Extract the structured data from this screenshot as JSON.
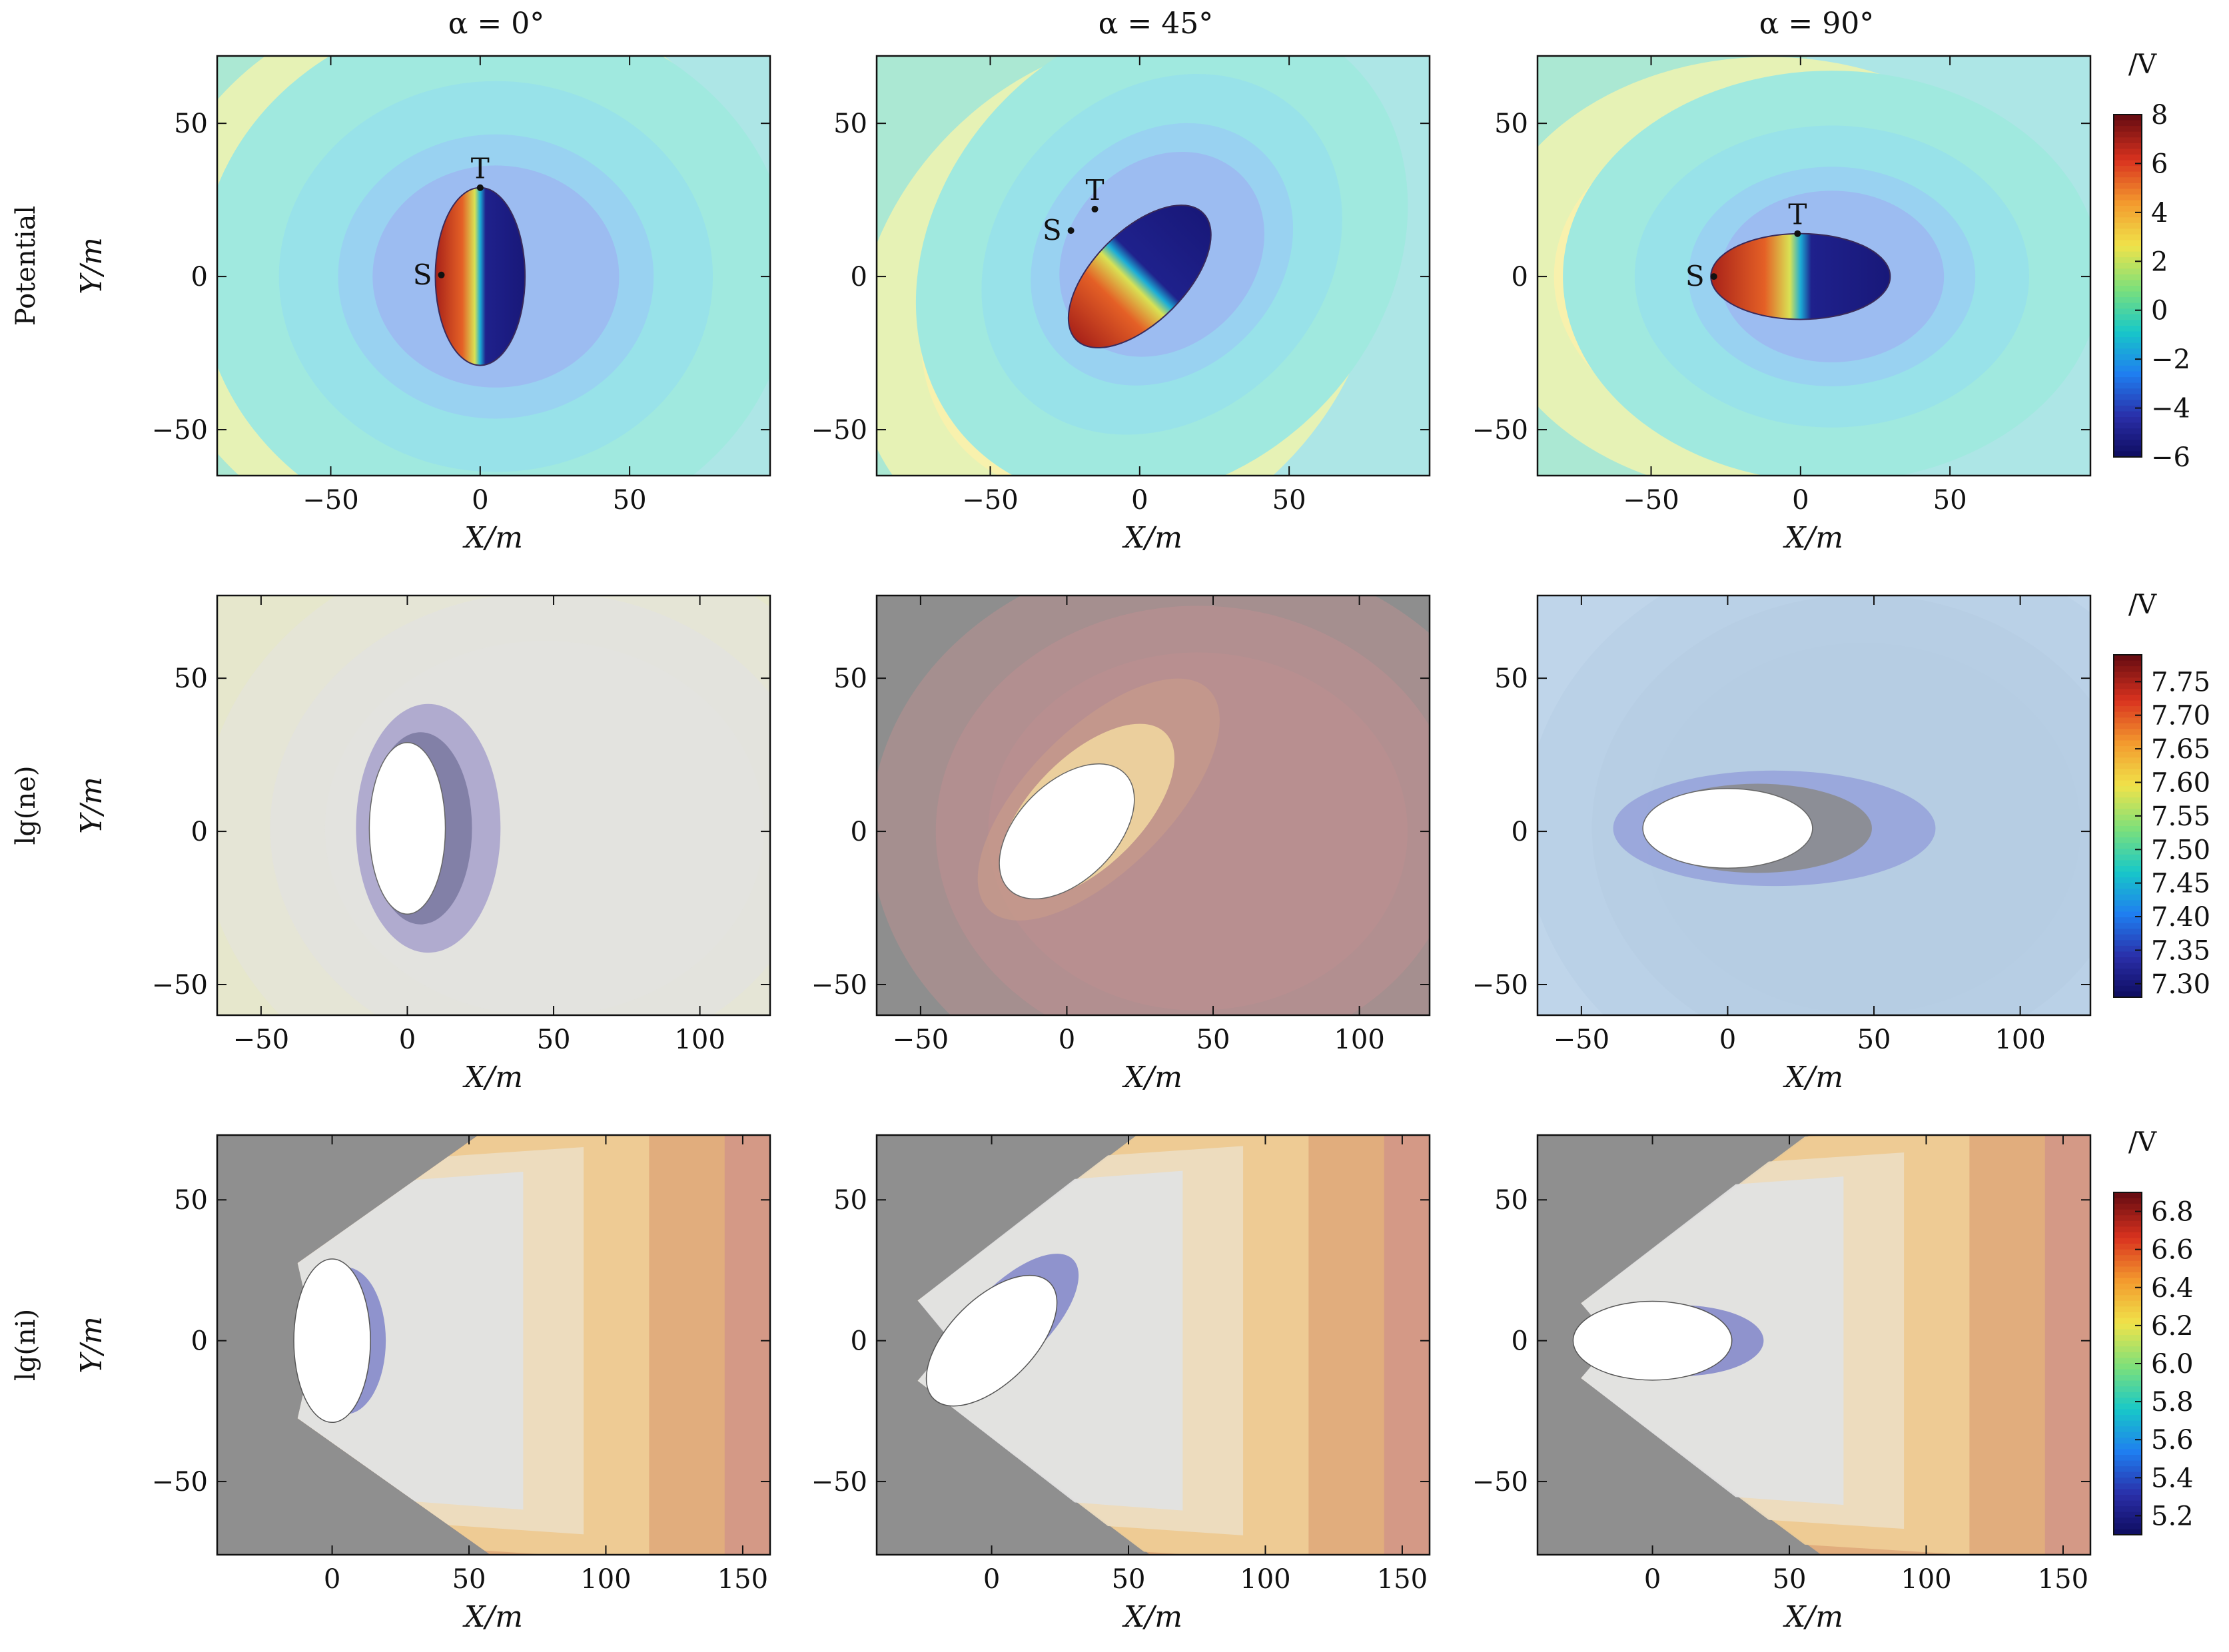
{
  "column_titles": [
    "α = 0°",
    "α = 45°",
    "α = 90°"
  ],
  "row_labels": [
    "Potential",
    "lg(ne)",
    "lg(ni)"
  ],
  "axis_units": {
    "x": "X/m",
    "y": "Y/m"
  },
  "colorbar_unit": "/V",
  "point_labels": {
    "S": "S",
    "T": "T"
  },
  "colormap": [
    "#0c0a5a",
    "#2a2ea8",
    "#1f7ef0",
    "#18c8c8",
    "#7ee07a",
    "#f0e34a",
    "#f39a2e",
    "#d9321f",
    "#6a0d12"
  ],
  "chart_data": [
    {
      "type": "heatmap",
      "row": "Potential",
      "column": "α = 0°",
      "xlim": [
        -88,
        97
      ],
      "ylim": [
        -65,
        72
      ],
      "xticks": [
        -50,
        0,
        50
      ],
      "yticks": [
        -50,
        0,
        50
      ],
      "xlabel": "X/m",
      "ylabel": "Y/m",
      "ellipse": {
        "cx": 0,
        "cy": 0,
        "rx": 15,
        "ry": 29,
        "angle_deg": 0,
        "mode": "potential"
      },
      "points": [
        {
          "label": "S",
          "x": -13,
          "y": 0.5
        },
        {
          "label": "T",
          "x": 0,
          "y": 29
        }
      ],
      "field": {
        "mode": "dipole"
      }
    },
    {
      "type": "heatmap",
      "row": "Potential",
      "column": "α = 45°",
      "xlim": [
        -88,
        97
      ],
      "ylim": [
        -65,
        72
      ],
      "xticks": [
        -50,
        0,
        50
      ],
      "yticks": [
        -50,
        0,
        50
      ],
      "xlabel": "X/m",
      "ylabel": "Y/m",
      "ellipse": {
        "cx": 0,
        "cy": 0,
        "rx": 30,
        "ry": 15,
        "angle_deg": -45,
        "mode": "potential"
      },
      "points": [
        {
          "label": "S",
          "x": -23,
          "y": 15
        },
        {
          "label": "T",
          "x": -15,
          "y": 22
        }
      ],
      "field": {
        "mode": "dipole"
      }
    },
    {
      "type": "heatmap",
      "row": "Potential",
      "column": "α = 90°",
      "xlim": [
        -88,
        97
      ],
      "ylim": [
        -65,
        72
      ],
      "xticks": [
        -50,
        0,
        50
      ],
      "yticks": [
        -50,
        0,
        50
      ],
      "xlabel": "X/m",
      "ylabel": "Y/m",
      "ellipse": {
        "cx": 0,
        "cy": 0,
        "rx": 30,
        "ry": 14,
        "angle_deg": 0,
        "mode": "potential"
      },
      "points": [
        {
          "label": "S",
          "x": -29,
          "y": 0
        },
        {
          "label": "T",
          "x": -1,
          "y": 14
        }
      ],
      "field": {
        "mode": "dipole"
      }
    },
    {
      "type": "heatmap",
      "row": "lg(ne)",
      "column": "α = 0°",
      "xlim": [
        -65,
        124
      ],
      "ylim": [
        -60,
        77
      ],
      "xticks": [
        -50,
        0,
        50,
        100
      ],
      "yticks": [
        -50,
        0,
        50
      ],
      "xlabel": "X/m",
      "ylabel": "Y/m",
      "background": "#e6e7cc",
      "ellipse": {
        "cx": 0,
        "cy": 1,
        "rx": 13,
        "ry": 28,
        "angle_deg": 0,
        "mode": "hole"
      },
      "wake": {
        "color": "#9a93c8",
        "inner_color": "#7a78a0"
      },
      "halo_color": "#e3e3df"
    },
    {
      "type": "heatmap",
      "row": "lg(ne)",
      "column": "α = 45°",
      "xlim": [
        -65,
        124
      ],
      "ylim": [
        -60,
        77
      ],
      "xticks": [
        -50,
        0,
        50,
        100
      ],
      "yticks": [
        -50,
        0,
        50
      ],
      "xlabel": "X/m",
      "ylabel": "Y/m",
      "background": "#8e8e8e",
      "ellipse": {
        "cx": 0,
        "cy": 0,
        "rx": 28,
        "ry": 16,
        "angle_deg": -45,
        "mode": "hole"
      },
      "wake": {
        "color": "#c89a8a",
        "inner_color": "#f2d8a0"
      },
      "halo_color": "#b88f90"
    },
    {
      "type": "heatmap",
      "row": "lg(ne)",
      "column": "α = 90°",
      "xlim": [
        -65,
        124
      ],
      "ylim": [
        -60,
        77
      ],
      "xticks": [
        -50,
        0,
        50,
        100
      ],
      "yticks": [
        -50,
        0,
        50
      ],
      "xlabel": "X/m",
      "ylabel": "Y/m",
      "background": "#bfd5ea",
      "ellipse": {
        "cx": 0,
        "cy": 1,
        "rx": 29,
        "ry": 13,
        "angle_deg": 0,
        "mode": "hole"
      },
      "wake": {
        "color": "#8f99d8",
        "inner_color": "#8a8a8a"
      },
      "halo_color": "#b6cde3"
    },
    {
      "type": "heatmap",
      "row": "lg(ni)",
      "column": "α = 0°",
      "xlim": [
        -42,
        160
      ],
      "ylim": [
        -76,
        73
      ],
      "xticks": [
        0,
        50,
        100,
        150
      ],
      "yticks": [
        -50,
        0,
        50
      ],
      "xlabel": "X/m",
      "ylabel": "Y/m",
      "background": "#8f8f8f",
      "ellipse": {
        "cx": 0,
        "cy": 0,
        "rx": 14,
        "ry": 29,
        "angle_deg": 0,
        "mode": "hole"
      },
      "wake": {
        "mode": "ion"
      }
    },
    {
      "type": "heatmap",
      "row": "lg(ni)",
      "column": "α = 45°",
      "xlim": [
        -42,
        160
      ],
      "ylim": [
        -76,
        73
      ],
      "xticks": [
        0,
        50,
        100,
        150
      ],
      "yticks": [
        -50,
        0,
        50
      ],
      "xlabel": "X/m",
      "ylabel": "Y/m",
      "background": "#8f8f8f",
      "ellipse": {
        "cx": 0,
        "cy": 0,
        "rx": 30,
        "ry": 15,
        "angle_deg": -45,
        "mode": "hole"
      },
      "wake": {
        "mode": "ion"
      }
    },
    {
      "type": "heatmap",
      "row": "lg(ni)",
      "column": "α = 90°",
      "xlim": [
        -42,
        160
      ],
      "ylim": [
        -76,
        73
      ],
      "xticks": [
        0,
        50,
        100,
        150
      ],
      "yticks": [
        -50,
        0,
        50
      ],
      "xlabel": "X/m",
      "ylabel": "Y/m",
      "background": "#8f8f8f",
      "ellipse": {
        "cx": 0,
        "cy": 0,
        "rx": 29,
        "ry": 14,
        "angle_deg": 0,
        "mode": "hole"
      },
      "wake": {
        "mode": "ion"
      }
    }
  ],
  "colorbars": [
    {
      "row": "Potential",
      "min": -6,
      "max": 8,
      "ticks": [
        "8",
        "6",
        "4",
        "2",
        "0",
        "−2",
        "−4",
        "−6"
      ],
      "tick_values": [
        8,
        6,
        4,
        2,
        0,
        -2,
        -4,
        -6
      ]
    },
    {
      "row": "lg(ne)",
      "min": 7.28,
      "max": 7.79,
      "ticks": [
        "7.75",
        "7.70",
        "7.65",
        "7.60",
        "7.55",
        "7.50",
        "7.45",
        "7.40",
        "7.35",
        "7.30"
      ],
      "tick_values": [
        7.75,
        7.7,
        7.65,
        7.6,
        7.55,
        7.5,
        7.45,
        7.4,
        7.35,
        7.3
      ]
    },
    {
      "row": "lg(ni)",
      "min": 5.1,
      "max": 6.9,
      "ticks": [
        "6.8",
        "6.6",
        "6.4",
        "6.2",
        "6.0",
        "5.8",
        "5.6",
        "5.4",
        "5.2"
      ],
      "tick_values": [
        6.8,
        6.6,
        6.4,
        6.2,
        6.0,
        5.8,
        5.6,
        5.4,
        5.2
      ]
    }
  ]
}
